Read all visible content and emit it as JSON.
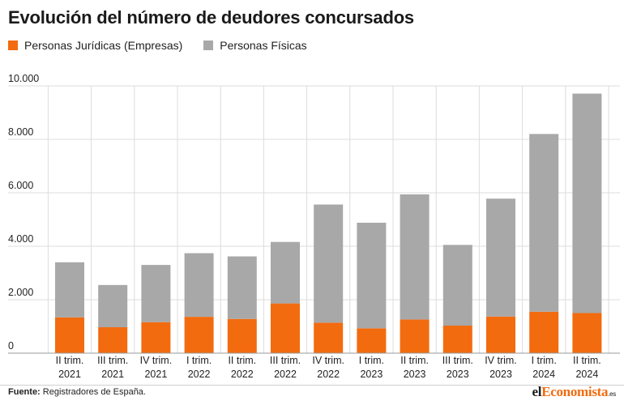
{
  "title": "Evolución del número de deudores concursados",
  "legend": [
    {
      "label": "Personas Jurídicas (Empresas)",
      "color": "#f26b0f"
    },
    {
      "label": "Personas Físicas",
      "color": "#a8a8a8"
    }
  ],
  "source": {
    "label": "Fuente:",
    "text": "Registradores de España."
  },
  "brand": {
    "part1": "el",
    "part2": "Economista",
    "part3": ".es"
  },
  "chart_data": {
    "type": "bar",
    "stacked": true,
    "title": "Evolución del número de deudores concursados",
    "categories": [
      [
        "II trim.",
        "2021"
      ],
      [
        "III trim.",
        "2021"
      ],
      [
        "IV trim.",
        "2021"
      ],
      [
        "I trim.",
        "2022"
      ],
      [
        "II trim.",
        "2022"
      ],
      [
        "III trim.",
        "2022"
      ],
      [
        "IV trim.",
        "2022"
      ],
      [
        "I trim.",
        "2023"
      ],
      [
        "II trim.",
        "2023"
      ],
      [
        "III trim.",
        "2023"
      ],
      [
        "IV trim.",
        "2023"
      ],
      [
        "I trim.",
        "2024"
      ],
      [
        "II trim.",
        "2024"
      ]
    ],
    "series": [
      {
        "name": "Personas Jurídicas (Empresas)",
        "color": "#f26b0f",
        "values": [
          1340,
          970,
          1160,
          1360,
          1280,
          1860,
          1140,
          930,
          1260,
          1030,
          1370,
          1550,
          1500
        ]
      },
      {
        "name": "Personas Físicas",
        "color": "#a8a8a8",
        "values": [
          2060,
          1580,
          2140,
          2380,
          2340,
          2300,
          4420,
          3950,
          4680,
          3020,
          4410,
          6650,
          8210
        ]
      }
    ],
    "yticks": [
      "0",
      "2.000",
      "4.000",
      "6.000",
      "8.000",
      "10.000"
    ],
    "ytick_values": [
      0,
      2000,
      4000,
      6000,
      8000,
      10000
    ],
    "ylim": [
      0,
      10000
    ],
    "grid": true,
    "legend_position": "top-left"
  }
}
